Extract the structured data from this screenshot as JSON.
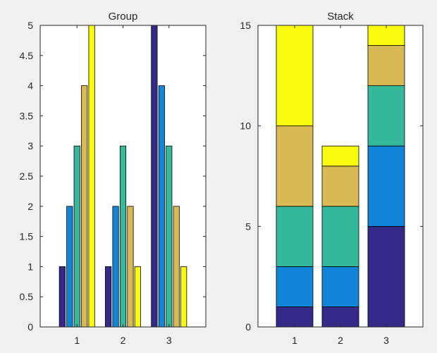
{
  "chart_data": [
    {
      "type": "bar",
      "mode": "grouped",
      "title": "Group",
      "categories": [
        "1",
        "2",
        "3"
      ],
      "series": [
        {
          "values": [
            1,
            1,
            5
          ],
          "color": "#352a87"
        },
        {
          "values": [
            2,
            2,
            4
          ],
          "color": "#1385d9"
        },
        {
          "values": [
            3,
            3,
            3
          ],
          "color": "#36b89a"
        },
        {
          "values": [
            4,
            2,
            2
          ],
          "color": "#d7ba54"
        },
        {
          "values": [
            5,
            1,
            1
          ],
          "color": "#f9fb0e"
        }
      ],
      "ylim": [
        0,
        5
      ],
      "yticks": [
        "0",
        "0.5",
        "1",
        "1.5",
        "2",
        "2.5",
        "3",
        "3.5",
        "4",
        "4.5",
        "5"
      ],
      "xlabel": "",
      "ylabel": "",
      "grid": false
    },
    {
      "type": "bar",
      "mode": "stacked",
      "title": "Stack",
      "categories": [
        "1",
        "2",
        "3"
      ],
      "series": [
        {
          "values": [
            1,
            1,
            5
          ],
          "color": "#352a87"
        },
        {
          "values": [
            2,
            2,
            4
          ],
          "color": "#1385d9"
        },
        {
          "values": [
            3,
            3,
            3
          ],
          "color": "#36b89a"
        },
        {
          "values": [
            4,
            2,
            2
          ],
          "color": "#d7ba54"
        },
        {
          "values": [
            5,
            1,
            1
          ],
          "color": "#f9fb0e"
        }
      ],
      "ylim": [
        0,
        15
      ],
      "yticks": [
        "0",
        "5",
        "10",
        "15"
      ],
      "xlabel": "",
      "ylabel": "",
      "grid": false
    }
  ]
}
